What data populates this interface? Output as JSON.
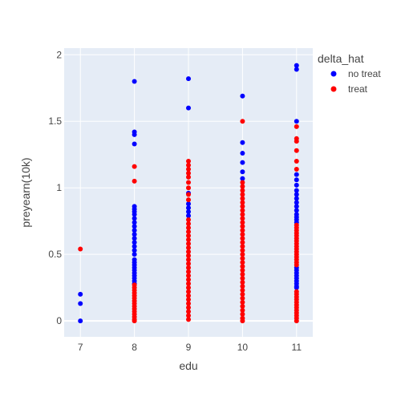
{
  "chart_data": {
    "type": "scatter",
    "xlabel": "edu",
    "ylabel": "preyearn(10k)",
    "xlim": [
      6.7,
      11.3
    ],
    "ylim": [
      -0.12,
      2.05
    ],
    "xticks": [
      7,
      8,
      9,
      10,
      11
    ],
    "xtick_labels": [
      "7",
      "8",
      "9",
      "10",
      "11"
    ],
    "yticks": [
      0,
      0.5,
      1,
      1.5,
      2
    ],
    "ytick_labels": [
      "0",
      "0.5",
      "1",
      "1.5",
      "2"
    ],
    "grid": true,
    "background_color": "#E5ECF6",
    "legend": {
      "title": "delta_hat",
      "placement": "right"
    },
    "series": [
      {
        "name": "no treat",
        "color": "#0000FF",
        "points": [
          {
            "x": 7,
            "y": 0.2
          },
          {
            "x": 7,
            "y": 0.13
          },
          {
            "x": 7,
            "y": 0.0
          },
          {
            "x": 8,
            "y": 1.8
          },
          {
            "x": 8,
            "y": 1.42
          },
          {
            "x": 8,
            "y": 1.4
          },
          {
            "x": 8,
            "y": 1.33
          },
          {
            "x": 8,
            "y": 0.86
          },
          {
            "x": 8,
            "y": 0.84
          },
          {
            "x": 8,
            "y": 0.82
          },
          {
            "x": 8,
            "y": 0.8
          },
          {
            "x": 8,
            "y": 0.77
          },
          {
            "x": 8,
            "y": 0.74
          },
          {
            "x": 8,
            "y": 0.71
          },
          {
            "x": 8,
            "y": 0.68
          },
          {
            "x": 8,
            "y": 0.65
          },
          {
            "x": 8,
            "y": 0.62
          },
          {
            "x": 8,
            "y": 0.59
          },
          {
            "x": 8,
            "y": 0.56
          },
          {
            "x": 8,
            "y": 0.53
          },
          {
            "x": 8,
            "y": 0.5
          },
          {
            "x": 8,
            "y": 0.46
          },
          {
            "x": 8,
            "y": 0.44
          },
          {
            "x": 8,
            "y": 0.42
          },
          {
            "x": 8,
            "y": 0.4
          },
          {
            "x": 8,
            "y": 0.38
          },
          {
            "x": 8,
            "y": 0.36
          },
          {
            "x": 8,
            "y": 0.34
          },
          {
            "x": 8,
            "y": 0.32
          },
          {
            "x": 8,
            "y": 0.3
          },
          {
            "x": 8,
            "y": 0.28
          },
          {
            "x": 9,
            "y": 1.82
          },
          {
            "x": 9,
            "y": 1.6
          },
          {
            "x": 9,
            "y": 0.96
          },
          {
            "x": 9,
            "y": 0.88
          },
          {
            "x": 9,
            "y": 0.85
          },
          {
            "x": 9,
            "y": 0.82
          },
          {
            "x": 9,
            "y": 0.79
          },
          {
            "x": 10,
            "y": 1.69
          },
          {
            "x": 10,
            "y": 1.34
          },
          {
            "x": 10,
            "y": 1.26
          },
          {
            "x": 10,
            "y": 1.19
          },
          {
            "x": 10,
            "y": 1.12
          },
          {
            "x": 10,
            "y": 1.07
          },
          {
            "x": 11,
            "y": 1.92
          },
          {
            "x": 11,
            "y": 1.89
          },
          {
            "x": 11,
            "y": 1.5
          },
          {
            "x": 11,
            "y": 1.1
          },
          {
            "x": 11,
            "y": 1.06
          },
          {
            "x": 11,
            "y": 1.02
          },
          {
            "x": 11,
            "y": 0.98
          },
          {
            "x": 11,
            "y": 0.95
          },
          {
            "x": 11,
            "y": 0.92
          },
          {
            "x": 11,
            "y": 0.89
          },
          {
            "x": 11,
            "y": 0.86
          },
          {
            "x": 11,
            "y": 0.83
          },
          {
            "x": 11,
            "y": 0.8
          },
          {
            "x": 11,
            "y": 0.78
          },
          {
            "x": 11,
            "y": 0.76
          },
          {
            "x": 11,
            "y": 0.74
          },
          {
            "x": 11,
            "y": 0.4
          },
          {
            "x": 11,
            "y": 0.38
          },
          {
            "x": 11,
            "y": 0.36
          },
          {
            "x": 11,
            "y": 0.34
          },
          {
            "x": 11,
            "y": 0.32
          },
          {
            "x": 11,
            "y": 0.3
          },
          {
            "x": 11,
            "y": 0.28
          },
          {
            "x": 11,
            "y": 0.26
          },
          {
            "x": 11,
            "y": 0.25
          }
        ]
      },
      {
        "name": "treat",
        "color": "#FF0000",
        "points": [
          {
            "x": 7,
            "y": 0.54
          },
          {
            "x": 8,
            "y": 1.16
          },
          {
            "x": 8,
            "y": 1.05
          },
          {
            "x": 8,
            "y": 0.27
          },
          {
            "x": 8,
            "y": 0.25
          },
          {
            "x": 8,
            "y": 0.23
          },
          {
            "x": 8,
            "y": 0.21
          },
          {
            "x": 8,
            "y": 0.19
          },
          {
            "x": 8,
            "y": 0.17
          },
          {
            "x": 8,
            "y": 0.15
          },
          {
            "x": 8,
            "y": 0.13
          },
          {
            "x": 8,
            "y": 0.11
          },
          {
            "x": 8,
            "y": 0.09
          },
          {
            "x": 8,
            "y": 0.07
          },
          {
            "x": 8,
            "y": 0.05
          },
          {
            "x": 8,
            "y": 0.03
          },
          {
            "x": 8,
            "y": 0.01
          },
          {
            "x": 8,
            "y": 0.0
          },
          {
            "x": 9,
            "y": 1.2
          },
          {
            "x": 9,
            "y": 1.17
          },
          {
            "x": 9,
            "y": 1.14
          },
          {
            "x": 9,
            "y": 1.11
          },
          {
            "x": 9,
            "y": 1.08
          },
          {
            "x": 9,
            "y": 1.04
          },
          {
            "x": 9,
            "y": 1.0
          },
          {
            "x": 9,
            "y": 0.95
          },
          {
            "x": 9,
            "y": 0.91
          },
          {
            "x": 9,
            "y": 0.76
          },
          {
            "x": 9,
            "y": 0.73
          },
          {
            "x": 9,
            "y": 0.7
          },
          {
            "x": 9,
            "y": 0.67
          },
          {
            "x": 9,
            "y": 0.64
          },
          {
            "x": 9,
            "y": 0.61
          },
          {
            "x": 9,
            "y": 0.58
          },
          {
            "x": 9,
            "y": 0.55
          },
          {
            "x": 9,
            "y": 0.52
          },
          {
            "x": 9,
            "y": 0.49
          },
          {
            "x": 9,
            "y": 0.46
          },
          {
            "x": 9,
            "y": 0.43
          },
          {
            "x": 9,
            "y": 0.4
          },
          {
            "x": 9,
            "y": 0.37
          },
          {
            "x": 9,
            "y": 0.34
          },
          {
            "x": 9,
            "y": 0.31
          },
          {
            "x": 9,
            "y": 0.28
          },
          {
            "x": 9,
            "y": 0.25
          },
          {
            "x": 9,
            "y": 0.22
          },
          {
            "x": 9,
            "y": 0.19
          },
          {
            "x": 9,
            "y": 0.16
          },
          {
            "x": 9,
            "y": 0.13
          },
          {
            "x": 9,
            "y": 0.1
          },
          {
            "x": 9,
            "y": 0.07
          },
          {
            "x": 9,
            "y": 0.04
          },
          {
            "x": 9,
            "y": 0.01
          },
          {
            "x": 10,
            "y": 1.5
          },
          {
            "x": 10,
            "y": 1.04
          },
          {
            "x": 10,
            "y": 1.01
          },
          {
            "x": 10,
            "y": 0.98
          },
          {
            "x": 10,
            "y": 0.95
          },
          {
            "x": 10,
            "y": 0.92
          },
          {
            "x": 10,
            "y": 0.89
          },
          {
            "x": 10,
            "y": 0.86
          },
          {
            "x": 10,
            "y": 0.83
          },
          {
            "x": 10,
            "y": 0.8
          },
          {
            "x": 10,
            "y": 0.77
          },
          {
            "x": 10,
            "y": 0.74
          },
          {
            "x": 10,
            "y": 0.71
          },
          {
            "x": 10,
            "y": 0.68
          },
          {
            "x": 10,
            "y": 0.65
          },
          {
            "x": 10,
            "y": 0.62
          },
          {
            "x": 10,
            "y": 0.59
          },
          {
            "x": 10,
            "y": 0.56
          },
          {
            "x": 10,
            "y": 0.53
          },
          {
            "x": 10,
            "y": 0.5
          },
          {
            "x": 10,
            "y": 0.47
          },
          {
            "x": 10,
            "y": 0.44
          },
          {
            "x": 10,
            "y": 0.41
          },
          {
            "x": 10,
            "y": 0.38
          },
          {
            "x": 10,
            "y": 0.35
          },
          {
            "x": 10,
            "y": 0.32
          },
          {
            "x": 10,
            "y": 0.29
          },
          {
            "x": 10,
            "y": 0.26
          },
          {
            "x": 10,
            "y": 0.23
          },
          {
            "x": 10,
            "y": 0.2
          },
          {
            "x": 10,
            "y": 0.17
          },
          {
            "x": 10,
            "y": 0.14
          },
          {
            "x": 10,
            "y": 0.11
          },
          {
            "x": 10,
            "y": 0.08
          },
          {
            "x": 10,
            "y": 0.05
          },
          {
            "x": 10,
            "y": 0.02
          },
          {
            "x": 10,
            "y": 0.0
          },
          {
            "x": 11,
            "y": 1.46
          },
          {
            "x": 11,
            "y": 1.37
          },
          {
            "x": 11,
            "y": 1.35
          },
          {
            "x": 11,
            "y": 1.28
          },
          {
            "x": 11,
            "y": 1.2
          },
          {
            "x": 11,
            "y": 1.14
          },
          {
            "x": 11,
            "y": 0.72
          },
          {
            "x": 11,
            "y": 0.7
          },
          {
            "x": 11,
            "y": 0.68
          },
          {
            "x": 11,
            "y": 0.66
          },
          {
            "x": 11,
            "y": 0.64
          },
          {
            "x": 11,
            "y": 0.62
          },
          {
            "x": 11,
            "y": 0.6
          },
          {
            "x": 11,
            "y": 0.58
          },
          {
            "x": 11,
            "y": 0.56
          },
          {
            "x": 11,
            "y": 0.54
          },
          {
            "x": 11,
            "y": 0.52
          },
          {
            "x": 11,
            "y": 0.5
          },
          {
            "x": 11,
            "y": 0.48
          },
          {
            "x": 11,
            "y": 0.46
          },
          {
            "x": 11,
            "y": 0.44
          },
          {
            "x": 11,
            "y": 0.42
          },
          {
            "x": 11,
            "y": 0.22
          },
          {
            "x": 11,
            "y": 0.2
          },
          {
            "x": 11,
            "y": 0.18
          },
          {
            "x": 11,
            "y": 0.16
          },
          {
            "x": 11,
            "y": 0.14
          },
          {
            "x": 11,
            "y": 0.12
          },
          {
            "x": 11,
            "y": 0.1
          },
          {
            "x": 11,
            "y": 0.08
          },
          {
            "x": 11,
            "y": 0.06
          },
          {
            "x": 11,
            "y": 0.04
          },
          {
            "x": 11,
            "y": 0.02
          },
          {
            "x": 11,
            "y": 0.0
          }
        ]
      }
    ]
  }
}
